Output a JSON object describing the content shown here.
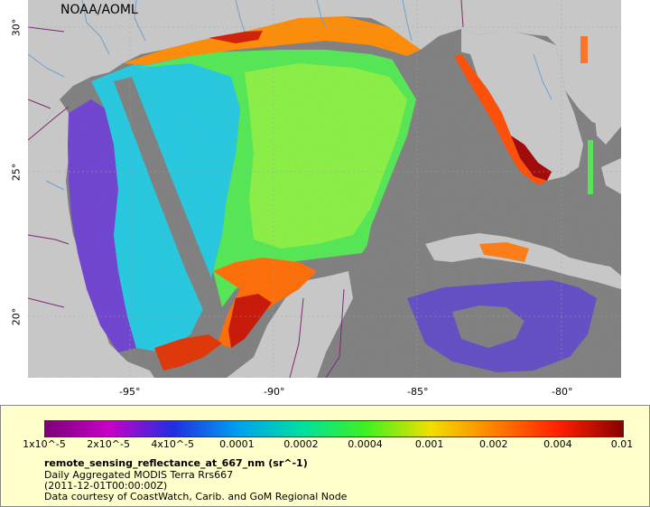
{
  "credit": "NOAA/AOML",
  "axes": {
    "x_ticks": [
      "-95°",
      "-90°",
      "-85°",
      "-80°"
    ],
    "y_ticks": [
      "30°",
      "25°",
      "20°"
    ]
  },
  "legend": {
    "ticks": [
      "1x10^-5",
      "2x10^-5",
      "4x10^-5",
      "0.0001",
      "0.0002",
      "0.0004",
      "0.001",
      "0.002",
      "0.004",
      "0.01"
    ],
    "title": "remote_sensing_reflectance_at_667_nm (sr^-1)",
    "line1": "Daily Aggregated MODIS Terra Rrs667",
    "line2": "(2011-12-01T00:00:00Z)",
    "line3": "Data courtesy of CoastWatch, Carib. and GoM Regional Node",
    "colors": [
      "#7a007a",
      "#c800c8",
      "#2030e0",
      "#00a0f0",
      "#00e0a0",
      "#40f020",
      "#f0e000",
      "#ff8000",
      "#ff2000",
      "#8a0000"
    ]
  },
  "colors": {
    "land": "#c8c8c8",
    "no_data": "#7d7d7d",
    "borders": "#7a1f6e",
    "rivers": "#6aa0d0"
  }
}
